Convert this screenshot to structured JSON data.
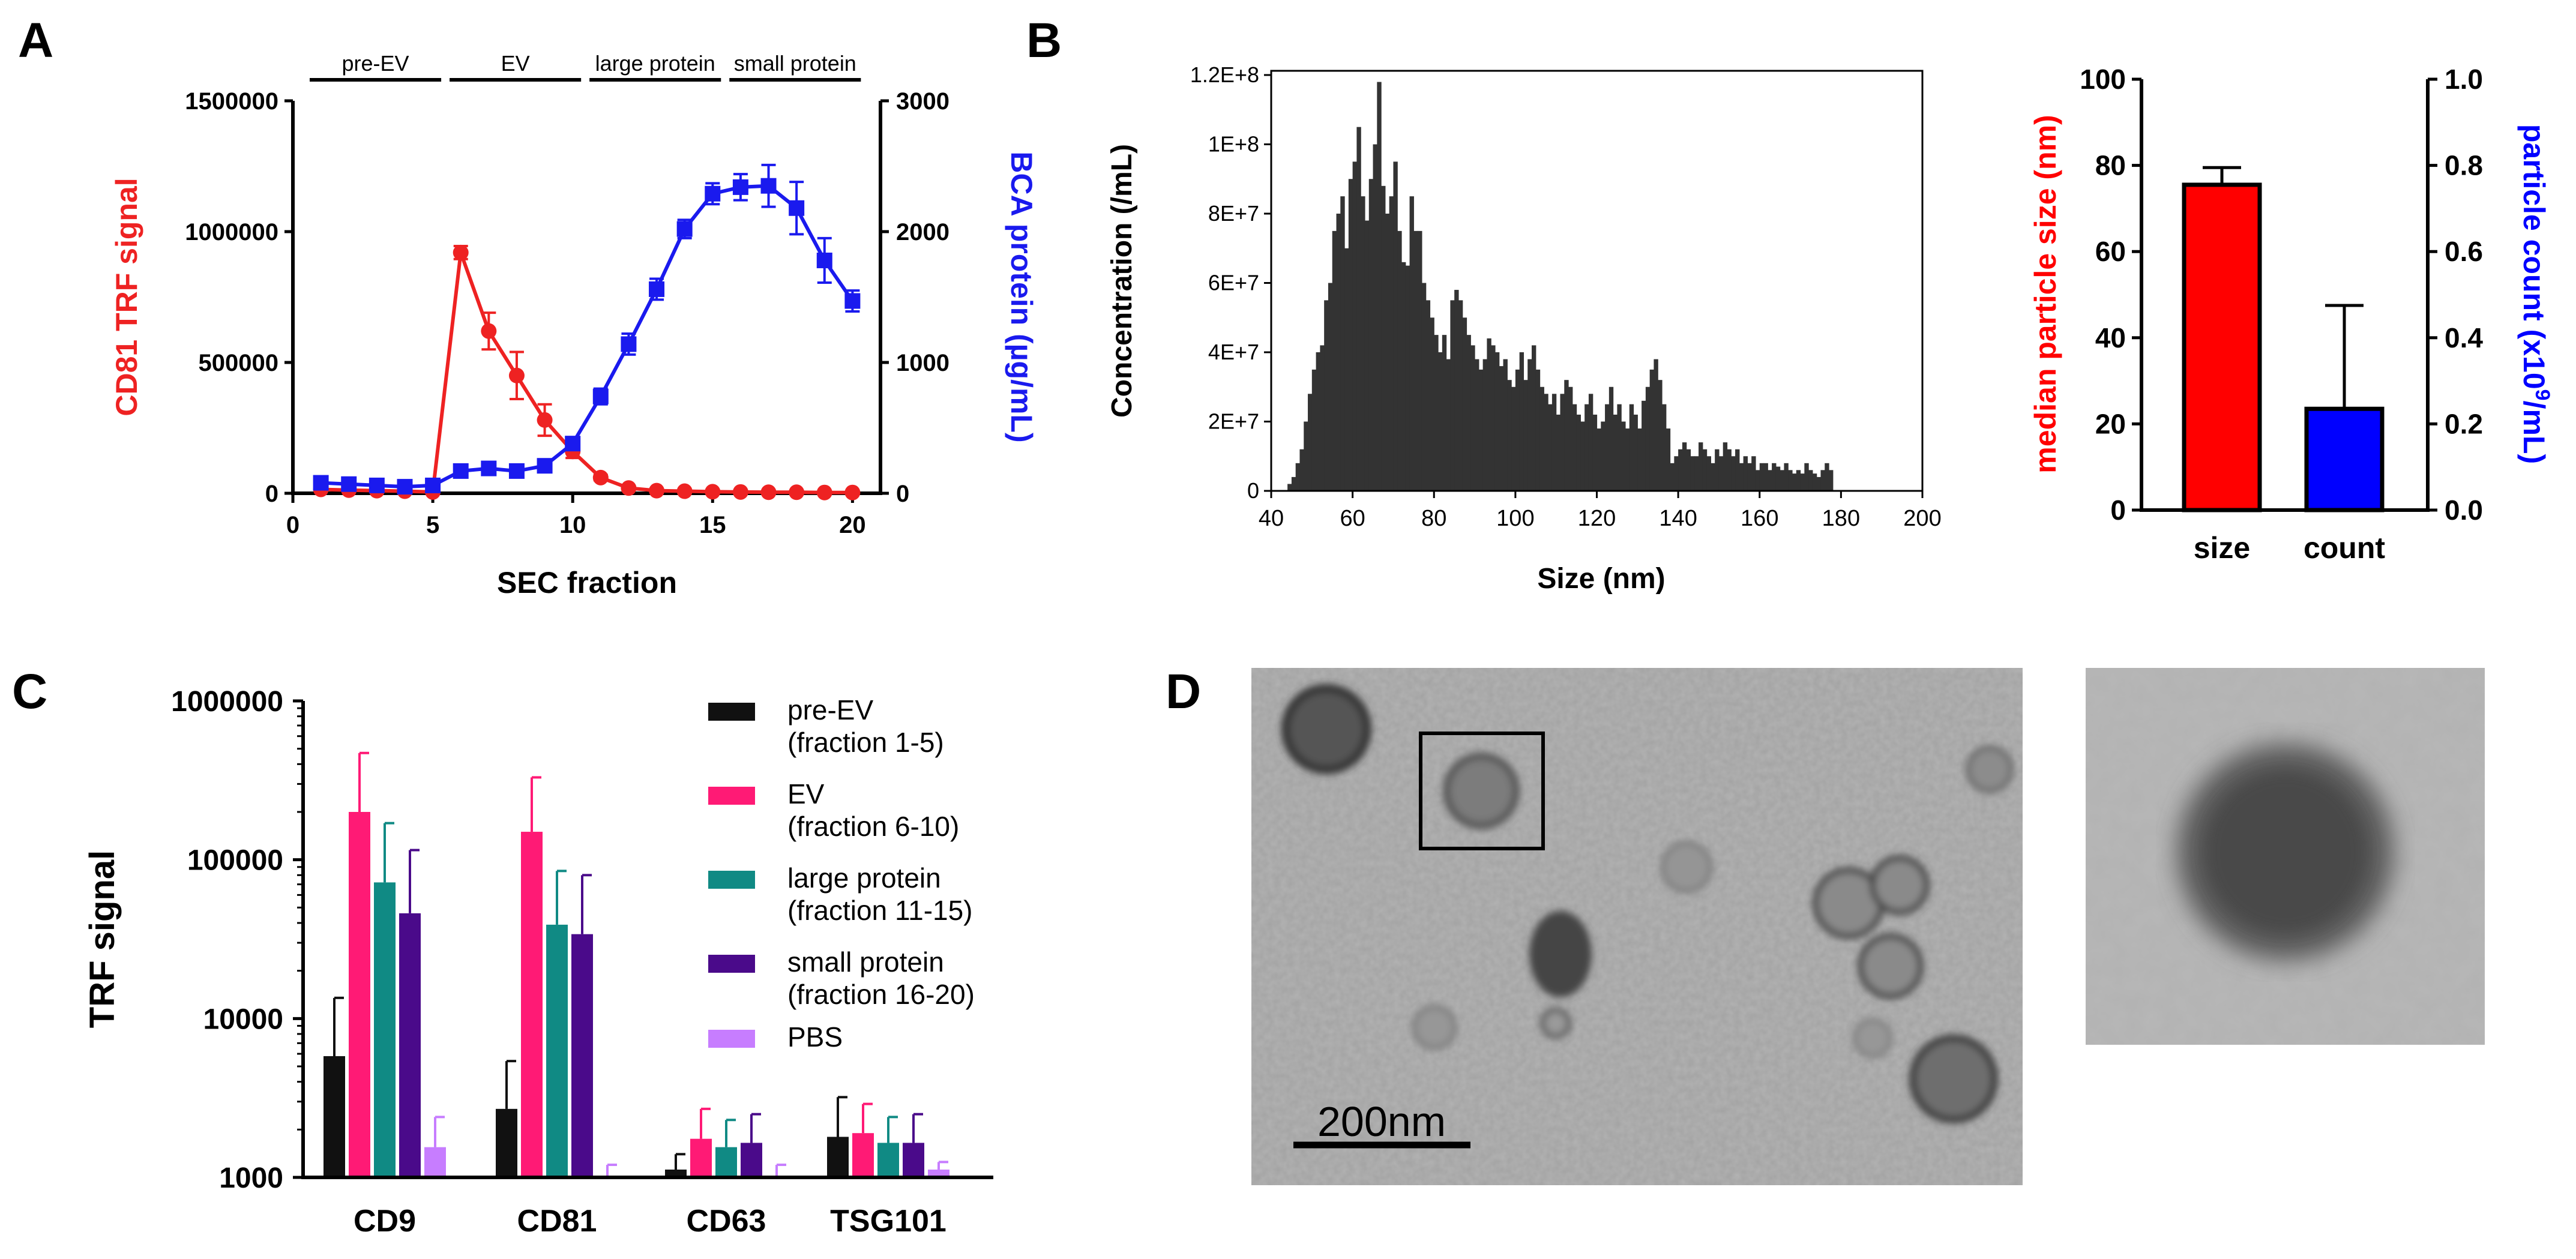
{
  "panel_labels": {
    "a": "A",
    "b": "B",
    "c": "C",
    "d": "D"
  },
  "colors": {
    "red": "#ee2222",
    "blue": "#1a1aee",
    "black": "#111111",
    "pink": "#ff1a75",
    "teal": "#108a84",
    "purple": "#4a0a8a",
    "lavender": "#c77dff",
    "hist": "#333333",
    "bar_red": "#ff0000",
    "bar_blue": "#0000ff"
  },
  "chart_data": [
    {
      "id": "A",
      "type": "line",
      "xlabel": "SEC fraction",
      "ylabel_left": "CD81 TRF signal",
      "ylabel_right": "BCA protein  (µg/mL)",
      "x_ticks": [
        "0",
        "5",
        "10",
        "15",
        "20"
      ],
      "y_left_ticks": [
        "0",
        "500000",
        "1000000",
        "1500000"
      ],
      "y_right_ticks": [
        "0",
        "1000",
        "2000",
        "3000"
      ],
      "xlim": [
        0,
        21
      ],
      "ylim_left": [
        0,
        1500000
      ],
      "ylim_right": [
        0,
        3000
      ],
      "regions": [
        {
          "label": "pre-EV",
          "from": 0.6,
          "to": 5.3
        },
        {
          "label": "EV",
          "from": 5.6,
          "to": 10.3
        },
        {
          "label": "large protein",
          "from": 10.6,
          "to": 15.3
        },
        {
          "label": "small protein",
          "from": 15.6,
          "to": 20.3
        }
      ],
      "series": [
        {
          "name": "CD81 TRF signal",
          "axis": "left",
          "color": "#ee2222",
          "marker": "circle",
          "x": [
            1,
            2,
            3,
            4,
            5,
            6,
            7,
            8,
            9,
            10,
            11,
            12,
            13,
            14,
            15,
            16,
            17,
            18,
            19,
            20
          ],
          "y": [
            15000,
            12000,
            10000,
            8000,
            5000,
            920000,
            620000,
            450000,
            280000,
            160000,
            60000,
            20000,
            10000,
            8000,
            6000,
            5000,
            4000,
            4000,
            3000,
            3000
          ],
          "err": [
            5000,
            5000,
            5000,
            5000,
            5000,
            25000,
            70000,
            90000,
            60000,
            25000,
            10000,
            5000,
            3000,
            2000,
            2000,
            2000,
            2000,
            2000,
            2000,
            2000
          ]
        },
        {
          "name": "BCA protein",
          "axis": "right",
          "color": "#1a1aee",
          "marker": "square",
          "x": [
            1,
            2,
            3,
            4,
            5,
            6,
            7,
            8,
            9,
            10,
            11,
            12,
            13,
            14,
            15,
            16,
            17,
            18,
            19,
            20
          ],
          "y": [
            80,
            70,
            60,
            50,
            60,
            170,
            190,
            170,
            210,
            380,
            740,
            1140,
            1560,
            2020,
            2290,
            2340,
            2350,
            2180,
            1780,
            1470
          ],
          "err": [
            15,
            15,
            15,
            15,
            15,
            20,
            25,
            25,
            30,
            40,
            60,
            80,
            80,
            70,
            80,
            100,
            160,
            200,
            170,
            80
          ]
        }
      ]
    },
    {
      "id": "B-histogram",
      "type": "bar",
      "xlabel": "Size (nm)",
      "ylabel": "Concentration (/mL)",
      "x_ticks": [
        "40",
        "60",
        "80",
        "100",
        "120",
        "140",
        "160",
        "180",
        "200"
      ],
      "y_ticks": [
        "0",
        "2E+7",
        "4E+7",
        "6E+7",
        "8E+7",
        "1E+8",
        "1.2E+8"
      ],
      "xlim": [
        40,
        200
      ],
      "ylim": [
        0,
        120000000
      ],
      "bin_width": 1,
      "bins_start": 43,
      "values": [
        0,
        2,
        4,
        8,
        12,
        20,
        28,
        35,
        40,
        42,
        55,
        60,
        75,
        80,
        85,
        70,
        90,
        95,
        105,
        85,
        78,
        90,
        100,
        118,
        88,
        80,
        85,
        95,
        75,
        66,
        65,
        85,
        75,
        75,
        60,
        55,
        50,
        45,
        40,
        45,
        38,
        55,
        58,
        55,
        50,
        45,
        42,
        38,
        35,
        38,
        44,
        42,
        40,
        36,
        38,
        32,
        30,
        35,
        40,
        32,
        38,
        42,
        35,
        30,
        28,
        25,
        28,
        22,
        28,
        32,
        30,
        25,
        22,
        20,
        25,
        28,
        22,
        18,
        20,
        25,
        30,
        22,
        25,
        20,
        18,
        25,
        22,
        18,
        26,
        30,
        35,
        38,
        32,
        25,
        18,
        8,
        10,
        12,
        14,
        12,
        10,
        10,
        14,
        12,
        10,
        8,
        12,
        10,
        14,
        12,
        10,
        12,
        8,
        10,
        8,
        10,
        6,
        8,
        8,
        6,
        8,
        7,
        6,
        8,
        6,
        5,
        6,
        5,
        8,
        6,
        5,
        4,
        6,
        8,
        6,
        0,
        0,
        0,
        0,
        0,
        0,
        0,
        0,
        0,
        0,
        0,
        0,
        0,
        0,
        0,
        0,
        0,
        0,
        0,
        0,
        0,
        0,
        0
      ]
    },
    {
      "id": "B-bars",
      "type": "bar",
      "categories": [
        "size",
        "count"
      ],
      "ylabel_left": "median particle size (nm)",
      "ylabel_right": "particle count (x10",
      "ylabel_right_sup": "9",
      "ylabel_right_tail": "/mL)",
      "y_left_ticks": [
        "0",
        "20",
        "40",
        "60",
        "80",
        "100"
      ],
      "y_right_ticks": [
        "0.0",
        "0.2",
        "0.4",
        "0.6",
        "0.8",
        "1.0"
      ],
      "ylim_left": [
        0,
        100
      ],
      "ylim_right": [
        0,
        1.0
      ],
      "values": [
        {
          "category": "size",
          "axis": "left",
          "value": 75.5,
          "err": 4
        },
        {
          "category": "count",
          "axis": "right",
          "value": 0.235,
          "err": 0.24
        }
      ]
    },
    {
      "id": "C",
      "type": "bar",
      "ylabel": "TRF signal",
      "yscale": "log",
      "ylim": [
        1000,
        1000000
      ],
      "y_ticks": [
        "1000",
        "10000",
        "100000",
        "1000000"
      ],
      "categories": [
        "CD9",
        "CD81",
        "CD63",
        "TSG101"
      ],
      "series": [
        {
          "name": "pre-EV",
          "sub": "(fraction 1-5)",
          "values": [
            5800,
            2700,
            1120,
            1800
          ],
          "err_top": [
            13500,
            5400,
            1400,
            3200
          ]
        },
        {
          "name": "EV",
          "sub": "(fraction 6-10)",
          "values": [
            200000,
            150000,
            1750,
            1900
          ],
          "err_top": [
            470000,
            330000,
            2700,
            2900
          ]
        },
        {
          "name": "large protein",
          "sub": "(fraction 11-15)",
          "values": [
            72000,
            39000,
            1550,
            1650
          ],
          "err_top": [
            170000,
            85000,
            2300,
            2400
          ]
        },
        {
          "name": "small protein",
          "sub": "(fraction 16-20)",
          "values": [
            46000,
            34000,
            1650,
            1650
          ],
          "err_top": [
            115000,
            80000,
            2500,
            2500
          ]
        },
        {
          "name": "PBS",
          "sub": "",
          "values": [
            1550,
            1020,
            1000,
            1120
          ],
          "err_top": [
            2400,
            1200,
            1200,
            1250
          ]
        }
      ]
    }
  ],
  "panel_d": {
    "scalebar_label": "200nm"
  }
}
